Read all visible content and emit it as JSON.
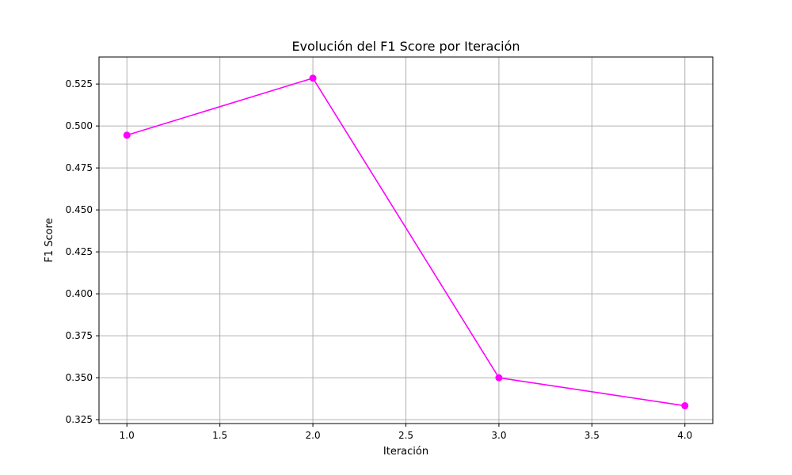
{
  "chart_data": {
    "type": "line",
    "title": "Evolución del F1 Score por Iteración",
    "xlabel": "Iteración",
    "ylabel": "F1 Score",
    "x": [
      1.0,
      2.0,
      3.0,
      4.0
    ],
    "series": [
      {
        "values": [
          0.4945,
          0.5285,
          0.35,
          0.3333
        ],
        "color": "#ff00ff",
        "marker": "circle"
      }
    ],
    "xlim": [
      0.85,
      4.15
    ],
    "ylim": [
      0.3227,
      0.5411
    ],
    "xticks": [
      1.0,
      1.5,
      2.0,
      2.5,
      3.0,
      3.5,
      4.0
    ],
    "xtick_labels": [
      "1.0",
      "1.5",
      "2.0",
      "2.5",
      "3.0",
      "3.5",
      "4.0"
    ],
    "yticks": [
      0.325,
      0.35,
      0.375,
      0.4,
      0.425,
      0.45,
      0.475,
      0.5,
      0.525
    ],
    "ytick_labels": [
      "0.325",
      "0.350",
      "0.375",
      "0.400",
      "0.425",
      "0.450",
      "0.475",
      "0.500",
      "0.525"
    ],
    "grid": true,
    "legend": "none"
  }
}
